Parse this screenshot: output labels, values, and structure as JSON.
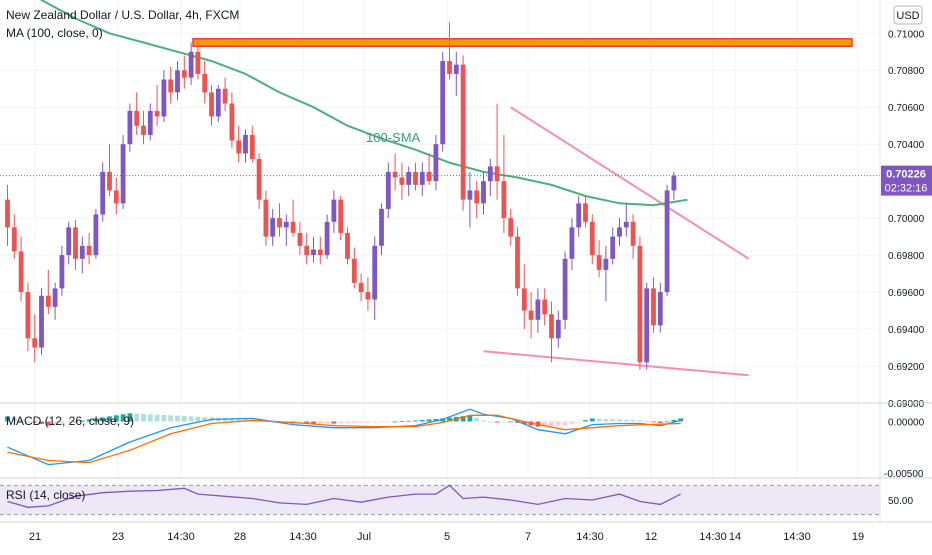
{
  "header": {
    "title": "New Zealand Dollar / U.S. Dollar, 4h, FXCM",
    "ma_label": "MA (100, close, 0)",
    "currency": "USD"
  },
  "colors": {
    "up": "#7e57c2",
    "down": "#ef5350",
    "ma": "#4caf7d",
    "resistance_fill": "#ff9800",
    "resistance_border": "#f23645",
    "trendline": "#f48fb1",
    "macd_line": "#2196f3",
    "signal_line": "#ff6d00",
    "rsi_line": "#7e57c2",
    "rsi_band": "#ede7f6",
    "price_tag": "#7e57c2"
  },
  "annotations": {
    "sma_label": "100-SMA"
  },
  "price_tag": {
    "price": "0.70226",
    "countdown": "02:32:16"
  },
  "macd": {
    "label": "MACD (12, 26, close, 9)",
    "ticks": [
      "0.00000",
      "-0.00500"
    ]
  },
  "rsi": {
    "label": "RSI (14, close)",
    "ticks": [
      "50.00"
    ]
  },
  "chart_data": {
    "type": "candlestick",
    "title": "New Zealand Dollar / U.S. Dollar, 4h, FXCM",
    "y_ticks": [
      "0.71000",
      "0.70800",
      "0.70600",
      "0.70400",
      "0.70000",
      "0.69800",
      "0.69600",
      "0.69400",
      "0.69200",
      "0.69000"
    ],
    "ylim": [
      0.69,
      0.7118
    ],
    "x_labels": [
      "21",
      "23",
      "14:30",
      "28",
      "14:30",
      "Jul",
      "5",
      "7",
      "14:30",
      "12",
      "14:30",
      "14",
      "14:30",
      "19"
    ],
    "ohlc": [
      [
        0.701,
        0.7018,
        0.6985,
        0.6995
      ],
      [
        0.6995,
        0.7002,
        0.6978,
        0.6982
      ],
      [
        0.6982,
        0.699,
        0.6955,
        0.696
      ],
      [
        0.696,
        0.6965,
        0.6928,
        0.6935
      ],
      [
        0.6935,
        0.6948,
        0.6922,
        0.693
      ],
      [
        0.693,
        0.6962,
        0.6926,
        0.6958
      ],
      [
        0.6958,
        0.6972,
        0.6948,
        0.6952
      ],
      [
        0.6952,
        0.6965,
        0.6945,
        0.6962
      ],
      [
        0.6962,
        0.6985,
        0.6958,
        0.698
      ],
      [
        0.698,
        0.6998,
        0.6975,
        0.6995
      ],
      [
        0.6995,
        0.6999,
        0.6972,
        0.6978
      ],
      [
        0.6978,
        0.699,
        0.697,
        0.6985
      ],
      [
        0.6985,
        0.6992,
        0.6975,
        0.698
      ],
      [
        0.698,
        0.7005,
        0.6978,
        0.7002
      ],
      [
        0.7002,
        0.703,
        0.6998,
        0.7025
      ],
      [
        0.7025,
        0.704,
        0.7012,
        0.7015
      ],
      [
        0.7015,
        0.7022,
        0.7002,
        0.7008
      ],
      [
        0.7008,
        0.7045,
        0.7005,
        0.704
      ],
      [
        0.704,
        0.7062,
        0.7036,
        0.7058
      ],
      [
        0.7058,
        0.7068,
        0.7045,
        0.705
      ],
      [
        0.705,
        0.7058,
        0.704,
        0.7045
      ],
      [
        0.7045,
        0.7062,
        0.7042,
        0.7058
      ],
      [
        0.7058,
        0.7072,
        0.705,
        0.7055
      ],
      [
        0.7055,
        0.708,
        0.7052,
        0.7075
      ],
      [
        0.7075,
        0.7082,
        0.7062,
        0.7068
      ],
      [
        0.7068,
        0.7085,
        0.7064,
        0.708
      ],
      [
        0.708,
        0.7088,
        0.707,
        0.7076
      ],
      [
        0.7076,
        0.7095,
        0.7072,
        0.709
      ],
      [
        0.709,
        0.7095,
        0.7075,
        0.7078
      ],
      [
        0.7078,
        0.7085,
        0.7062,
        0.7068
      ],
      [
        0.7068,
        0.7072,
        0.705,
        0.7055
      ],
      [
        0.7055,
        0.7072,
        0.7052,
        0.707
      ],
      [
        0.707,
        0.7076,
        0.7058,
        0.7062
      ],
      [
        0.7062,
        0.7068,
        0.7038,
        0.7042
      ],
      [
        0.7042,
        0.705,
        0.703,
        0.7035
      ],
      [
        0.7035,
        0.7048,
        0.703,
        0.7045
      ],
      [
        0.7045,
        0.705,
        0.703,
        0.7032
      ],
      [
        0.7032,
        0.7035,
        0.7005,
        0.701
      ],
      [
        0.701,
        0.7015,
        0.6985,
        0.699
      ],
      [
        0.699,
        0.7005,
        0.6985,
        0.7
      ],
      [
        0.7,
        0.7008,
        0.699,
        0.6995
      ],
      [
        0.6995,
        0.7002,
        0.6985,
        0.6998
      ],
      [
        0.6998,
        0.701,
        0.699,
        0.6992
      ],
      [
        0.6992,
        0.6998,
        0.698,
        0.6985
      ],
      [
        0.6985,
        0.6992,
        0.6975,
        0.698
      ],
      [
        0.698,
        0.699,
        0.6976,
        0.6983
      ],
      [
        0.6983,
        0.699,
        0.6975,
        0.698
      ],
      [
        0.698,
        0.7002,
        0.6978,
        0.6998
      ],
      [
        0.6998,
        0.7015,
        0.6992,
        0.701
      ],
      [
        0.701,
        0.7012,
        0.6988,
        0.6992
      ],
      [
        0.6992,
        0.6995,
        0.6975,
        0.6978
      ],
      [
        0.6978,
        0.6984,
        0.6962,
        0.6965
      ],
      [
        0.6965,
        0.697,
        0.6955,
        0.696
      ],
      [
        0.696,
        0.6968,
        0.695,
        0.6956
      ],
      [
        0.6956,
        0.699,
        0.6945,
        0.6985
      ],
      [
        0.6985,
        0.7008,
        0.698,
        0.7005
      ],
      [
        0.7005,
        0.703,
        0.7,
        0.7025
      ],
      [
        0.7025,
        0.7035,
        0.7015,
        0.7022
      ],
      [
        0.7022,
        0.703,
        0.701,
        0.7018
      ],
      [
        0.7018,
        0.7028,
        0.7012,
        0.7025
      ],
      [
        0.7025,
        0.703,
        0.7015,
        0.7018
      ],
      [
        0.7018,
        0.703,
        0.7012,
        0.7025
      ],
      [
        0.7025,
        0.7035,
        0.7018,
        0.702
      ],
      [
        0.702,
        0.7045,
        0.7015,
        0.704
      ],
      [
        0.704,
        0.709,
        0.7036,
        0.7085
      ],
      [
        0.7085,
        0.7106,
        0.7075,
        0.7078
      ],
      [
        0.7078,
        0.709,
        0.7066,
        0.7083
      ],
      [
        0.7083,
        0.7088,
        0.7004,
        0.701
      ],
      [
        0.701,
        0.7025,
        0.6995,
        0.7015
      ],
      [
        0.7015,
        0.702,
        0.7,
        0.7008
      ],
      [
        0.7008,
        0.7025,
        0.7002,
        0.702
      ],
      [
        0.702,
        0.7032,
        0.7012,
        0.7028
      ],
      [
        0.7028,
        0.7062,
        0.701,
        0.702
      ],
      [
        0.702,
        0.7045,
        0.6992,
        0.7
      ],
      [
        0.7,
        0.7005,
        0.6985,
        0.699
      ],
      [
        0.699,
        0.6995,
        0.6958,
        0.6962
      ],
      [
        0.6962,
        0.6975,
        0.694,
        0.695
      ],
      [
        0.695,
        0.696,
        0.6935,
        0.6945
      ],
      [
        0.6945,
        0.6962,
        0.6938,
        0.6956
      ],
      [
        0.6956,
        0.6962,
        0.6942,
        0.6948
      ],
      [
        0.6948,
        0.6955,
        0.6922,
        0.6935
      ],
      [
        0.6935,
        0.695,
        0.693,
        0.6945
      ],
      [
        0.6945,
        0.6982,
        0.694,
        0.6978
      ],
      [
        0.6978,
        0.7,
        0.6972,
        0.6995
      ],
      [
        0.6995,
        0.7012,
        0.699,
        0.7008
      ],
      [
        0.7008,
        0.7012,
        0.6995,
        0.6998
      ],
      [
        0.6998,
        0.7002,
        0.6975,
        0.698
      ],
      [
        0.698,
        0.6988,
        0.6968,
        0.6972
      ],
      [
        0.6972,
        0.6985,
        0.6955,
        0.6978
      ],
      [
        0.6978,
        0.6995,
        0.6975,
        0.699
      ],
      [
        0.699,
        0.7,
        0.6985,
        0.6995
      ],
      [
        0.6995,
        0.7008,
        0.699,
        0.6998
      ],
      [
        0.6998,
        0.7002,
        0.6978,
        0.6985
      ],
      [
        0.6985,
        0.699,
        0.6918,
        0.6922
      ],
      [
        0.6922,
        0.6965,
        0.6918,
        0.6962
      ],
      [
        0.6962,
        0.6968,
        0.6938,
        0.6942
      ],
      [
        0.6942,
        0.6965,
        0.6938,
        0.696
      ],
      [
        0.696,
        0.7018,
        0.6958,
        0.7015
      ],
      [
        0.7015,
        0.7025,
        0.701,
        0.7023
      ]
    ],
    "series": [
      {
        "name": "MA (100, close, 0)",
        "type": "line",
        "values": [
          [
            0,
            0.7135
          ],
          [
            5,
            0.7118
          ],
          [
            10,
            0.7108
          ],
          [
            15,
            0.71
          ],
          [
            20,
            0.7095
          ],
          [
            25,
            0.709
          ],
          [
            30,
            0.7085
          ],
          [
            35,
            0.7078
          ],
          [
            40,
            0.7068
          ],
          [
            45,
            0.706
          ],
          [
            50,
            0.705
          ],
          [
            55,
            0.7043
          ],
          [
            60,
            0.7037
          ],
          [
            65,
            0.703
          ],
          [
            70,
            0.7025
          ],
          [
            75,
            0.7022
          ],
          [
            80,
            0.7018
          ],
          [
            85,
            0.7012
          ],
          [
            90,
            0.7008
          ],
          [
            95,
            0.7007
          ],
          [
            100,
            0.701
          ]
        ]
      }
    ],
    "resistance": [
      0.7093,
      0.7097
    ],
    "upper_trendline": [
      [
        74,
        0.706
      ],
      [
        109,
        0.6978
      ]
    ],
    "lower_trendline": [
      [
        70,
        0.6928
      ],
      [
        109,
        0.6915
      ]
    ],
    "macd_ylim": [
      -0.0055,
      0.0018
    ],
    "macd_line": [
      [
        0,
        -0.0025
      ],
      [
        6,
        -0.0042
      ],
      [
        12,
        -0.0038
      ],
      [
        18,
        -0.002
      ],
      [
        24,
        -0.0006
      ],
      [
        30,
        0.0002
      ],
      [
        36,
        0.0003
      ],
      [
        42,
        -0.0003
      ],
      [
        48,
        -0.0006
      ],
      [
        54,
        -0.0006
      ],
      [
        60,
        -0.0004
      ],
      [
        64,
        0.0002
      ],
      [
        68,
        0.0012
      ],
      [
        70,
        0.0007
      ],
      [
        74,
        0.0003
      ],
      [
        78,
        -0.0008
      ],
      [
        82,
        -0.0012
      ],
      [
        86,
        -0.0003
      ],
      [
        90,
        -0.0002
      ],
      [
        93,
        -0.0002
      ],
      [
        96,
        -0.0004
      ],
      [
        99,
        0.0001
      ]
    ],
    "signal_line": [
      [
        0,
        -0.003
      ],
      [
        6,
        -0.0038
      ],
      [
        12,
        -0.004
      ],
      [
        18,
        -0.0028
      ],
      [
        24,
        -0.0012
      ],
      [
        30,
        -0.0002
      ],
      [
        36,
        0.0001
      ],
      [
        42,
        -0.0001
      ],
      [
        48,
        -0.0004
      ],
      [
        54,
        -0.0005
      ],
      [
        60,
        -0.0005
      ],
      [
        64,
        -0.0001
      ],
      [
        68,
        0.0006
      ],
      [
        72,
        0.0006
      ],
      [
        78,
        -0.0003
      ],
      [
        82,
        -0.0008
      ],
      [
        86,
        -0.0006
      ],
      [
        90,
        -0.0004
      ],
      [
        94,
        -0.0003
      ],
      [
        99,
        -0.0002
      ]
    ],
    "rsi_ylim": [
      20,
      80
    ],
    "rsi_band": [
      30,
      70
    ],
    "rsi": [
      [
        0,
        48
      ],
      [
        3,
        40
      ],
      [
        6,
        42
      ],
      [
        10,
        55
      ],
      [
        14,
        60
      ],
      [
        18,
        62
      ],
      [
        22,
        63
      ],
      [
        26,
        66
      ],
      [
        28,
        58
      ],
      [
        32,
        55
      ],
      [
        36,
        52
      ],
      [
        40,
        46
      ],
      [
        44,
        44
      ],
      [
        48,
        52
      ],
      [
        52,
        47
      ],
      [
        56,
        54
      ],
      [
        60,
        58
      ],
      [
        63,
        58
      ],
      [
        65,
        70
      ],
      [
        67,
        52
      ],
      [
        70,
        54
      ],
      [
        74,
        50
      ],
      [
        78,
        44
      ],
      [
        82,
        52
      ],
      [
        86,
        50
      ],
      [
        90,
        58
      ],
      [
        93,
        48
      ],
      [
        96,
        44
      ],
      [
        99,
        58
      ]
    ]
  }
}
